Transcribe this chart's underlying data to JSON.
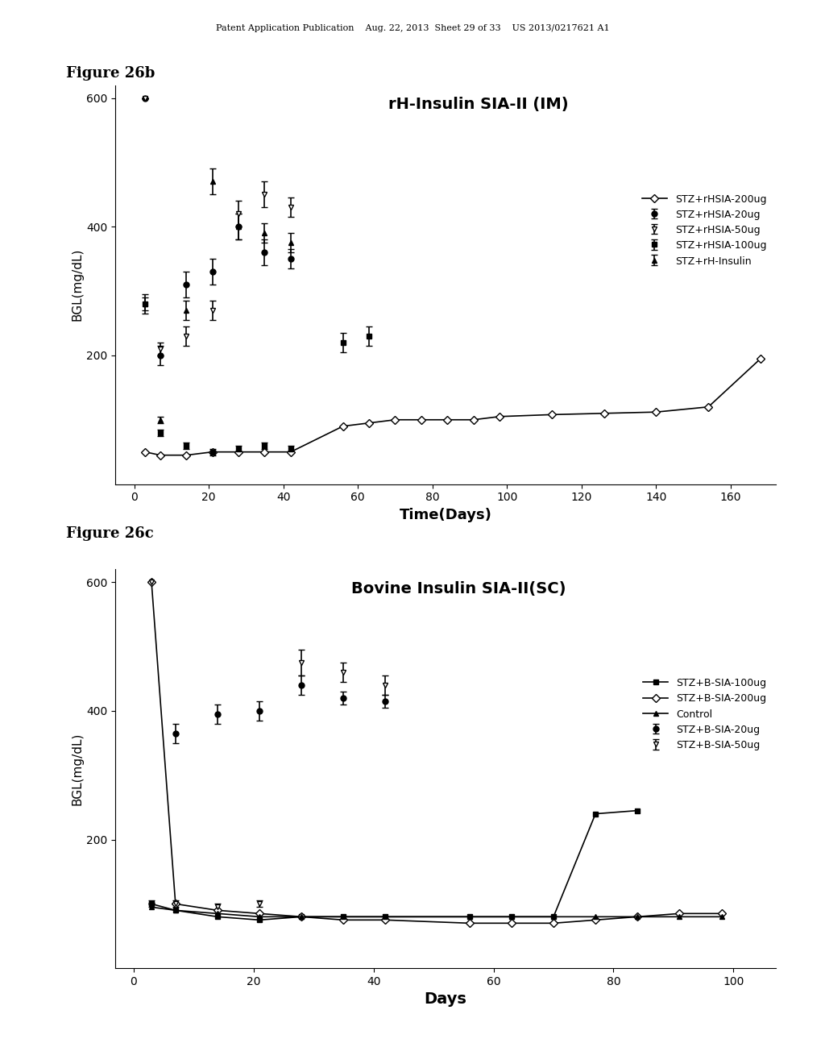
{
  "header_text": "Patent Application Publication    Aug. 22, 2013  Sheet 29 of 33    US 2013/0217621 A1",
  "fig1_label": "Figure 26b",
  "fig2_label": "Figure 26c",
  "fig1_title": "rH-Insulin SIA-II (IM)",
  "fig2_title": "Bovine Insulin SIA-II(SC)",
  "fig1_xlabel": "Time(Days)",
  "fig2_xlabel": "Days",
  "ylabel": "BGL(mg/dL)",
  "fig1_xlim": [
    -5,
    172
  ],
  "fig1_ylim": [
    0,
    620
  ],
  "fig2_xlim": [
    -3,
    107
  ],
  "fig2_ylim": [
    0,
    620
  ],
  "fig1_xticks": [
    0,
    20,
    40,
    60,
    80,
    100,
    120,
    140,
    160
  ],
  "fig1_yticks": [
    200,
    400,
    600
  ],
  "fig2_xticks": [
    0,
    20,
    40,
    60,
    80,
    100
  ],
  "fig2_yticks": [
    200,
    400,
    600
  ],
  "fig1_series": [
    {
      "label": "STZ+rHSIA-20ug",
      "marker": "o",
      "fillstyle": "full",
      "color": "black",
      "x": [
        3,
        7,
        14,
        21,
        28,
        35,
        42
      ],
      "y": [
        600,
        200,
        310,
        330,
        400,
        360,
        350
      ],
      "yerr": [
        0,
        15,
        20,
        20,
        20,
        20,
        15
      ],
      "spike_from": 200
    },
    {
      "label": "STZ+rHSIA-50ug",
      "marker": "v",
      "fillstyle": "none",
      "color": "black",
      "x": [
        3,
        7,
        14,
        21,
        28,
        35,
        42
      ],
      "y": [
        600,
        210,
        230,
        270,
        420,
        450,
        430
      ],
      "yerr": [
        0,
        10,
        15,
        15,
        20,
        20,
        15
      ],
      "spike_from": 210
    },
    {
      "label": "STZ+rHSIA-100ug",
      "marker": "s",
      "fillstyle": "full",
      "color": "black",
      "x": [
        3,
        7,
        14,
        21,
        28,
        35,
        42,
        56,
        63
      ],
      "y": [
        280,
        80,
        60,
        50,
        55,
        60,
        55,
        220,
        230
      ],
      "yerr": [
        10,
        5,
        5,
        5,
        5,
        5,
        5,
        15,
        15
      ],
      "spike_from": null
    },
    {
      "label": "STZ+rHSIA-200ug",
      "marker": "D",
      "fillstyle": "none",
      "color": "black",
      "x": [
        3,
        7,
        14,
        21,
        28,
        35,
        42,
        56,
        63,
        70,
        77,
        84,
        91,
        98,
        112,
        126,
        140,
        154,
        168
      ],
      "y": [
        50,
        45,
        45,
        50,
        50,
        50,
        50,
        90,
        95,
        100,
        100,
        100,
        100,
        105,
        108,
        110,
        112,
        120,
        195
      ],
      "yerr": null,
      "spike_from": null
    },
    {
      "label": "STZ+rH-Insulin",
      "marker": "^",
      "fillstyle": "full",
      "color": "black",
      "x": [
        3,
        7,
        14,
        21,
        28,
        35,
        42
      ],
      "y": [
        280,
        100,
        270,
        470,
        400,
        390,
        375
      ],
      "yerr": [
        15,
        5,
        15,
        20,
        20,
        15,
        15
      ],
      "spike_from": null
    }
  ],
  "fig2_series": [
    {
      "label": "STZ+B-SIA-20ug",
      "marker": "o",
      "fillstyle": "full",
      "color": "black",
      "x": [
        3,
        7,
        14,
        21,
        28,
        35,
        42
      ],
      "y": [
        100,
        365,
        395,
        400,
        440,
        420,
        415
      ],
      "yerr": [
        5,
        15,
        15,
        15,
        15,
        10,
        10
      ],
      "spike_from": null
    },
    {
      "label": "STZ+B-SIA-50ug",
      "marker": "v",
      "fillstyle": "none",
      "color": "black",
      "x": [
        3,
        7,
        14,
        21,
        28,
        35,
        42
      ],
      "y": [
        600,
        100,
        95,
        100,
        475,
        460,
        440
      ],
      "yerr": [
        0,
        5,
        5,
        5,
        20,
        15,
        15
      ],
      "spike_from": 100
    },
    {
      "label": "STZ+B-SIA-100ug",
      "marker": "s",
      "fillstyle": "full",
      "color": "black",
      "x": [
        3,
        7,
        14,
        21,
        28,
        35,
        42,
        56,
        63,
        70,
        77,
        84
      ],
      "y": [
        100,
        90,
        80,
        75,
        80,
        80,
        80,
        80,
        80,
        80,
        240,
        245
      ],
      "yerr": null,
      "spike_from": null
    },
    {
      "label": "STZ+B-SIA-200ug",
      "marker": "D",
      "fillstyle": "none",
      "color": "black",
      "x": [
        3,
        7,
        14,
        21,
        28,
        35,
        42,
        56,
        63,
        70,
        77,
        84,
        91,
        98
      ],
      "y": [
        600,
        100,
        90,
        85,
        80,
        75,
        75,
        70,
        70,
        70,
        75,
        80,
        85,
        85
      ],
      "yerr": null,
      "spike_from": 100
    },
    {
      "label": "Control",
      "marker": "^",
      "fillstyle": "full",
      "color": "black",
      "x": [
        3,
        7,
        14,
        21,
        28,
        35,
        42,
        56,
        63,
        70,
        77,
        84,
        91,
        98
      ],
      "y": [
        95,
        90,
        85,
        80,
        80,
        80,
        80,
        80,
        80,
        80,
        80,
        80,
        80,
        80
      ],
      "yerr": null,
      "spike_from": null
    }
  ]
}
